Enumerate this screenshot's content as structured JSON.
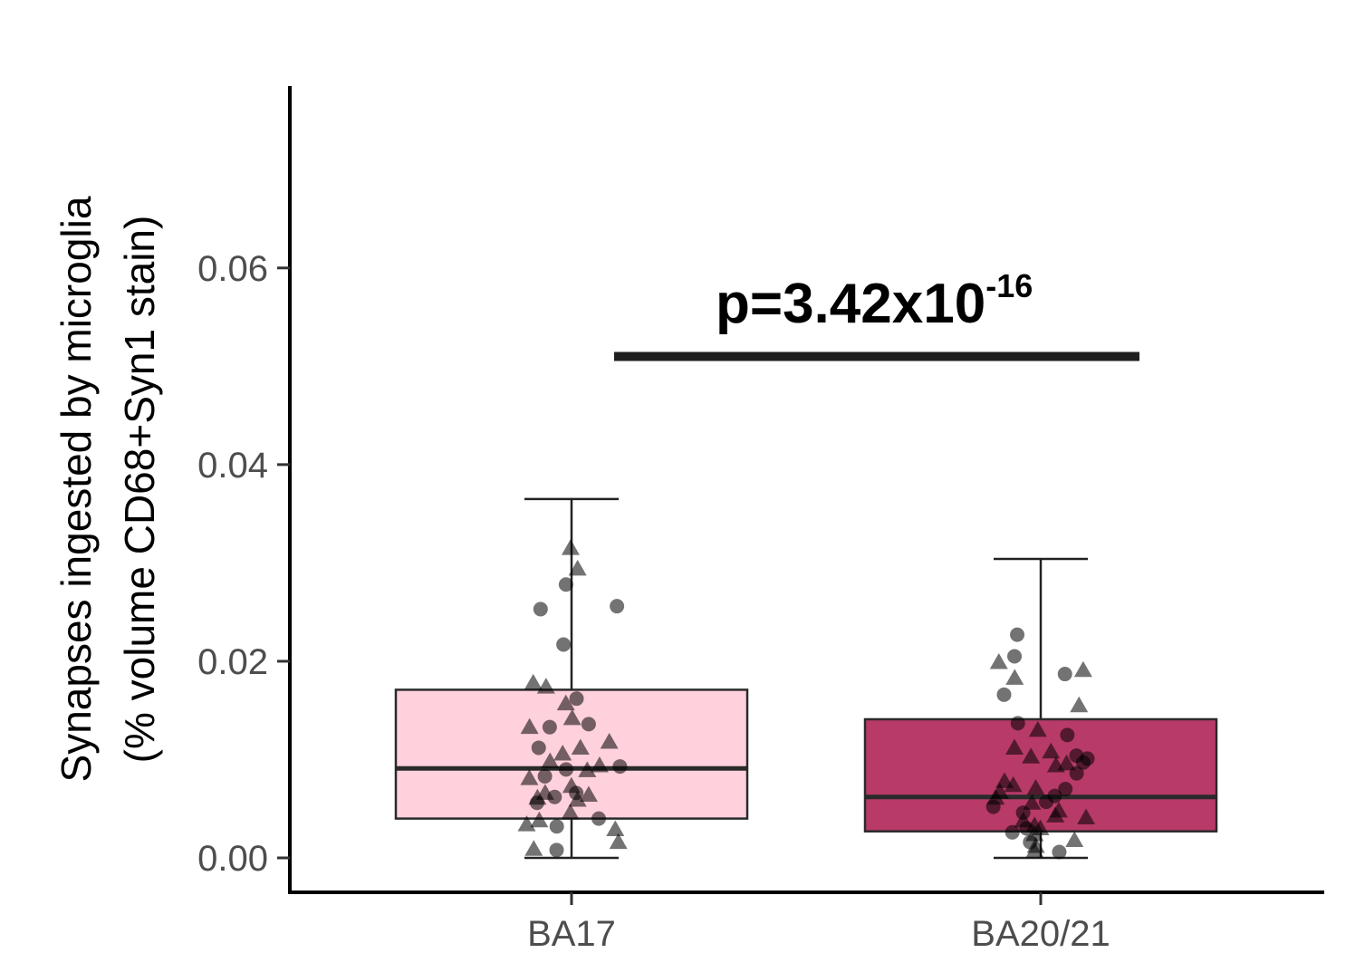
{
  "chart_data": {
    "type": "box",
    "categories": [
      "BA17",
      "BA20/21"
    ],
    "ylabel_line1": "Synapses ingested by microglia",
    "ylabel_line2": "(% volume CD68+Syn1 stain)",
    "ylim": [
      -0.0035,
      0.0785
    ],
    "yticks": [
      "0.00",
      "0.02",
      "0.04",
      "0.06"
    ],
    "ytick_values": [
      0,
      0.02,
      0.04,
      0.06
    ],
    "grid": false,
    "colors": {
      "BA17": "#ffd1dc",
      "BA20/21": "#b83a68",
      "points": "#000000",
      "significance_bar": "#1f1f1f"
    },
    "boxes": [
      {
        "category": "BA17",
        "whisker_low": 0.0,
        "q1": 0.004,
        "median": 0.0091,
        "q3": 0.0171,
        "whisker_high": 0.0365
      },
      {
        "category": "BA20/21",
        "whisker_low": 0.0,
        "q1": 0.0027,
        "median": 0.0062,
        "q3": 0.0141,
        "whisker_high": 0.0304
      }
    ],
    "points": [
      {
        "category": "BA17",
        "shape": "triangle",
        "values": [
          0.0315,
          0.0294,
          0.0178,
          0.0174,
          0.0157,
          0.0142,
          0.0133,
          0.0118,
          0.0112,
          0.0106,
          0.0098,
          0.0094,
          0.0089,
          0.0081,
          0.0073,
          0.0066,
          0.0064,
          0.0061,
          0.0059,
          0.0046,
          0.0038,
          0.0034,
          0.0029,
          0.0016,
          0.0009
        ]
      },
      {
        "category": "BA17",
        "shape": "circle",
        "values": [
          0.0278,
          0.0256,
          0.0253,
          0.0217,
          0.0162,
          0.0136,
          0.0133,
          0.0112,
          0.0093,
          0.009,
          0.0083,
          0.0066,
          0.0062,
          0.0056,
          0.004,
          0.0032,
          0.0008
        ]
      },
      {
        "category": "BA20/21",
        "shape": "triangle",
        "values": [
          0.0199,
          0.0191,
          0.0183,
          0.0155,
          0.013,
          0.0112,
          0.0108,
          0.0103,
          0.0096,
          0.0094,
          0.0078,
          0.0074,
          0.0071,
          0.0067,
          0.0061,
          0.0056,
          0.0048,
          0.0043,
          0.0041,
          0.0038,
          0.0033,
          0.003,
          0.0024,
          0.0018,
          0.0012,
          0.0007
        ]
      },
      {
        "category": "BA20/21",
        "shape": "circle",
        "values": [
          0.0227,
          0.0205,
          0.0187,
          0.0166,
          0.0137,
          0.0125,
          0.0104,
          0.0101,
          0.0097,
          0.0086,
          0.007,
          0.0063,
          0.0057,
          0.0052,
          0.0046,
          0.003,
          0.0026,
          0.0016,
          0.0006
        ]
      }
    ],
    "annotation": {
      "text_base": "p=3.42x10",
      "text_exponent": "-16",
      "bar_y": 0.051
    }
  }
}
